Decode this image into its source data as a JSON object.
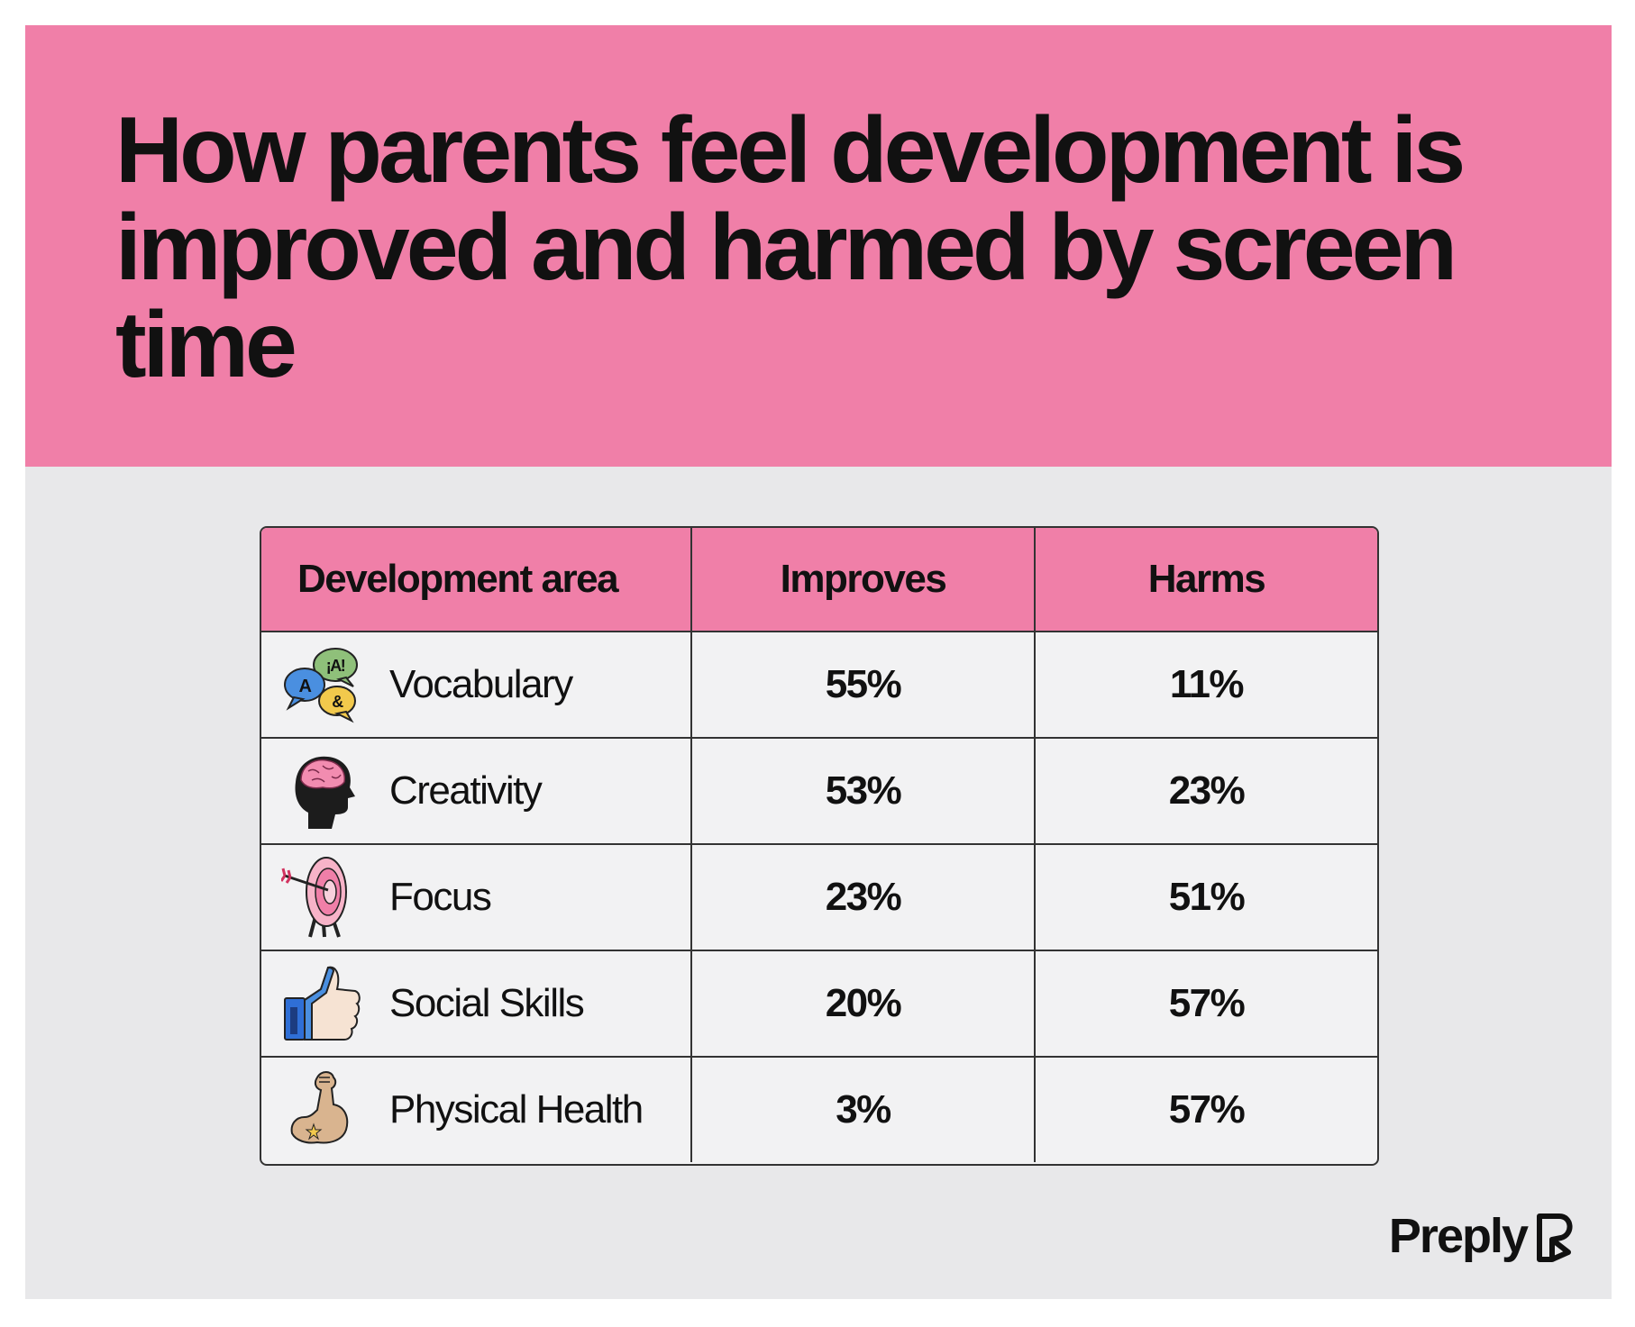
{
  "title": "How parents feel development is improved and harmed by screen time",
  "brand": "Preply",
  "colors": {
    "accent": "#f07fa8",
    "background": "#e8e8ea",
    "text": "#111111"
  },
  "chart_data": {
    "type": "table",
    "columns": [
      "Development area",
      "Improves",
      "Harms"
    ],
    "rows": [
      {
        "area": "Vocabulary",
        "icon": "speech-bubbles-icon",
        "improves": "55%",
        "harms": "11%"
      },
      {
        "area": "Creativity",
        "icon": "brain-head-icon",
        "improves": "53%",
        "harms": "23%"
      },
      {
        "area": "Focus",
        "icon": "target-arrow-icon",
        "improves": "23%",
        "harms": "51%"
      },
      {
        "area": "Social Skills",
        "icon": "thumbs-up-icon",
        "improves": "20%",
        "harms": "57%"
      },
      {
        "area": "Physical Health",
        "icon": "flexed-arm-icon",
        "improves": "3%",
        "harms": "57%"
      }
    ]
  }
}
